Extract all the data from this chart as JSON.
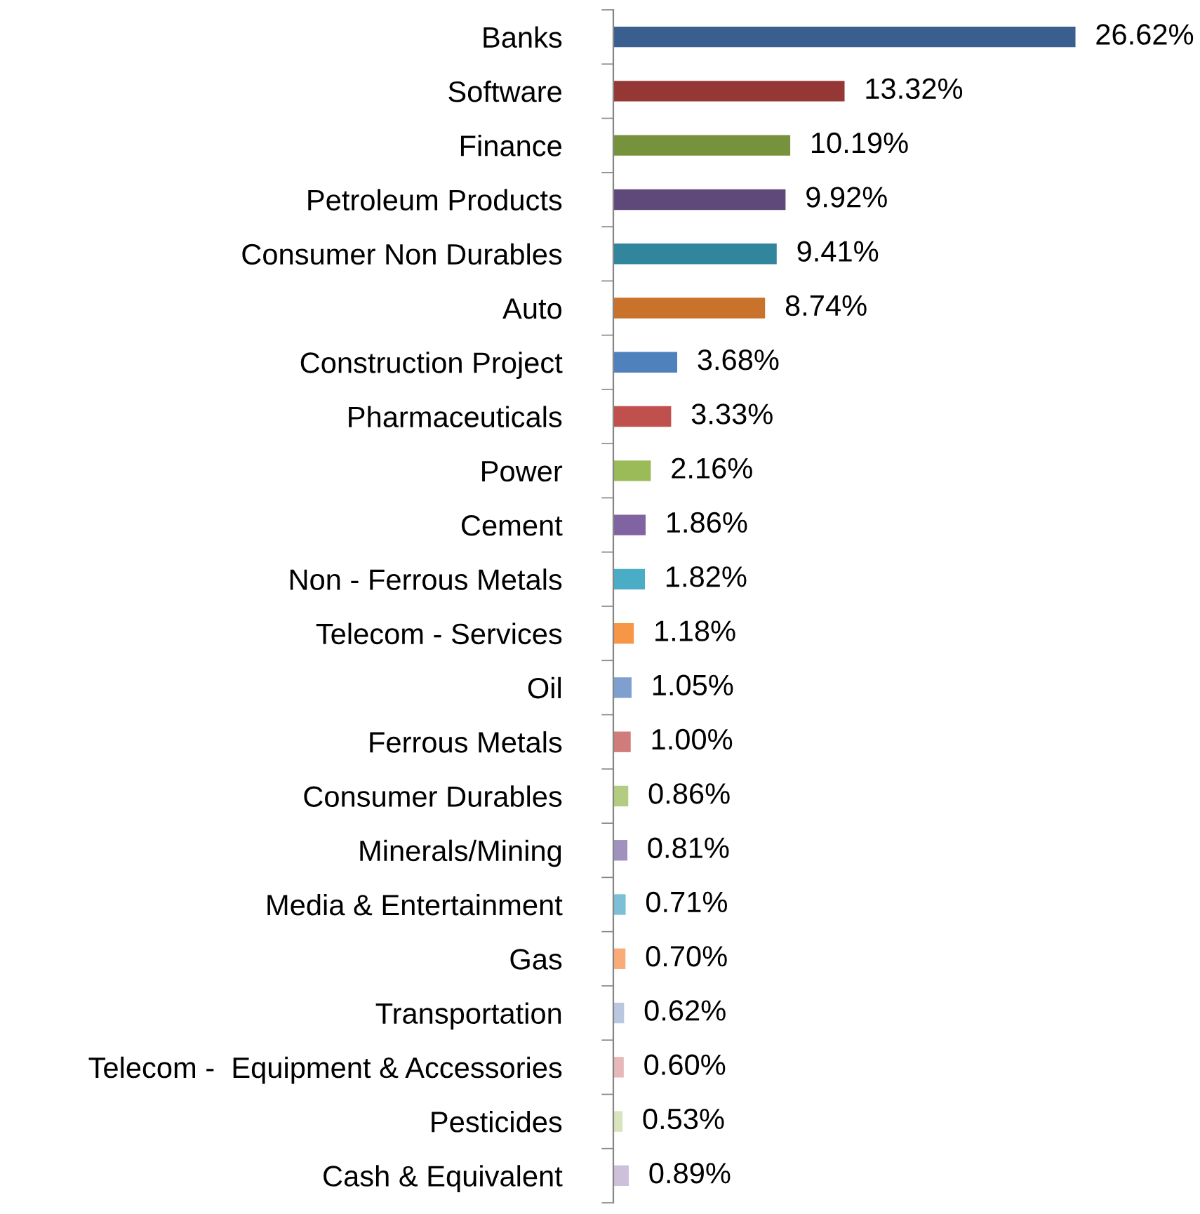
{
  "chart_data": {
    "type": "bar",
    "orientation": "horizontal",
    "data_labels": true,
    "categories": [
      "Banks",
      "Software",
      "Finance",
      "Petroleum Products",
      "Consumer Non Durables",
      "Auto",
      "Construction Project",
      "Pharmaceuticals",
      "Power",
      "Cement",
      "Non - Ferrous Metals",
      "Telecom - Services",
      "Oil",
      "Ferrous Metals",
      "Consumer Durables",
      "Minerals/Mining",
      "Media & Entertainment",
      "Gas",
      "Transportation",
      "Telecom -  Equipment & Accessories",
      "Pesticides",
      "Cash & Equivalent"
    ],
    "values": [
      26.62,
      13.32,
      10.19,
      9.92,
      9.41,
      8.74,
      3.68,
      3.33,
      2.16,
      1.86,
      1.82,
      1.18,
      1.05,
      1.0,
      0.86,
      0.81,
      0.71,
      0.7,
      0.62,
      0.6,
      0.53,
      0.89
    ],
    "value_labels": [
      "26.62%",
      "13.32%",
      "10.19%",
      "9.92%",
      "9.41%",
      "8.74%",
      "3.68%",
      "3.33%",
      "2.16%",
      "1.86%",
      "1.82%",
      "1.18%",
      "1.05%",
      "1.00%",
      "0.86%",
      "0.81%",
      "0.71%",
      "0.70%",
      "0.62%",
      "0.60%",
      "0.53%",
      "0.89%"
    ],
    "colors": [
      "#3a5f8f",
      "#953735",
      "#76923c",
      "#5f497a",
      "#31859c",
      "#c8722c",
      "#4f81bd",
      "#c0504d",
      "#9bbb59",
      "#8064a2",
      "#4bacc6",
      "#f79646",
      "#7f9fcf",
      "#d07c7a",
      "#b3cc82",
      "#a092bd",
      "#7cc0d5",
      "#f9ac77",
      "#b9c7e0",
      "#e6b9b8",
      "#d7e4bd",
      "#ccc0da"
    ],
    "grid": false,
    "legend": false
  }
}
